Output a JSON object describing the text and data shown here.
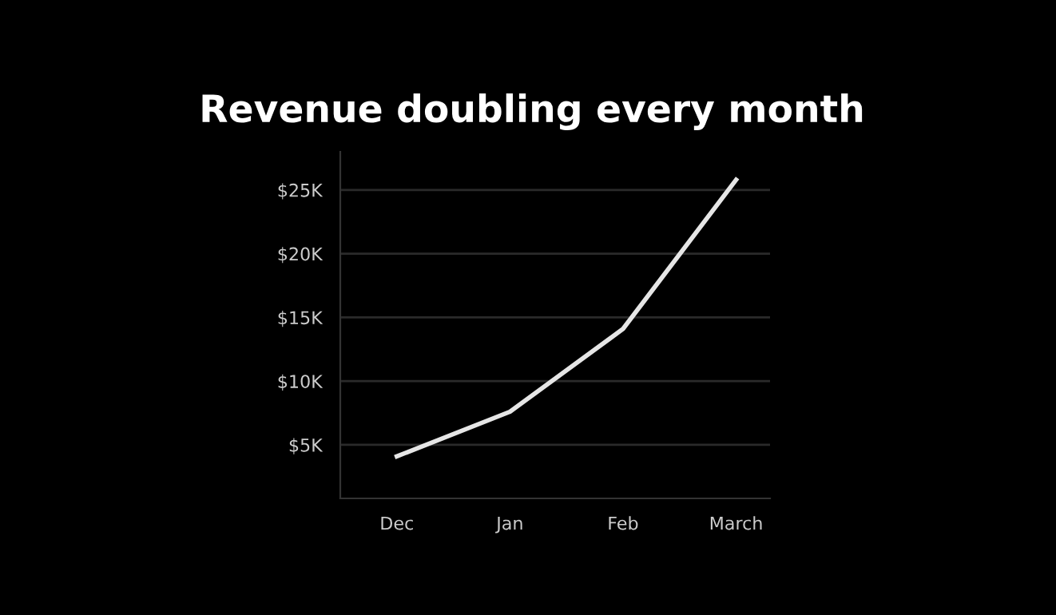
{
  "chart_data": {
    "type": "line",
    "title": "Revenue doubling every month",
    "categories": [
      "Dec",
      "Jan",
      "Feb",
      "March"
    ],
    "series": [
      {
        "color": "#e6e6e6",
        "values": [
          4.1,
          7.6,
          14.1,
          25.8
        ]
      }
    ],
    "ylim": [
      0.8,
      28
    ],
    "yticks": [
      {
        "value": 5,
        "label": "$5K"
      },
      {
        "value": 10,
        "label": "$10K"
      },
      {
        "value": 15,
        "label": "$15K"
      },
      {
        "value": 20,
        "label": "$20K"
      },
      {
        "value": 25,
        "label": "$25K"
      }
    ],
    "grid": "y",
    "legend": false,
    "marker": "none",
    "line_style": "solid"
  }
}
